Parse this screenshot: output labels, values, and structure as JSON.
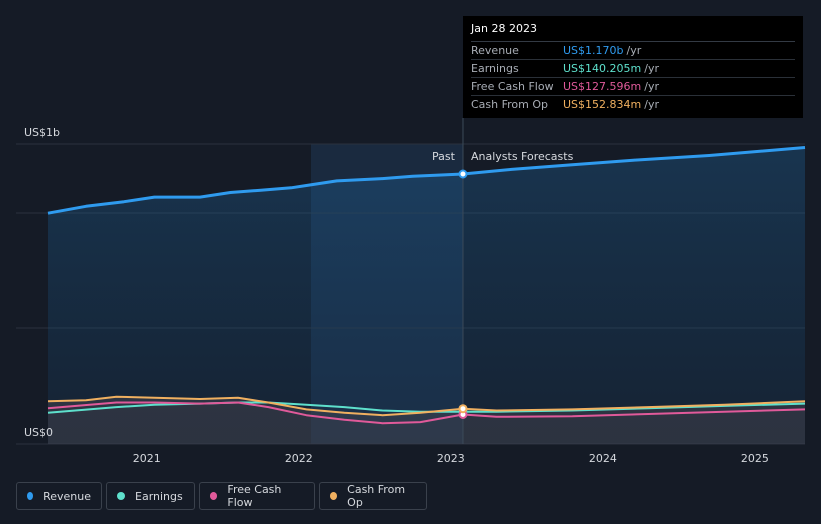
{
  "tooltip": {
    "date": "Jan 28 2023",
    "rows": [
      {
        "label": "Revenue",
        "value": "US$1.170b",
        "unit": "/yr",
        "color": "#2f9bef"
      },
      {
        "label": "Earnings",
        "value": "US$140.205m",
        "unit": "/yr",
        "color": "#5ee0cc"
      },
      {
        "label": "Free Cash Flow",
        "value": "US$127.596m",
        "unit": "/yr",
        "color": "#e05a9a"
      },
      {
        "label": "Cash From Op",
        "value": "US$152.834m",
        "unit": "/yr",
        "color": "#f0b060"
      }
    ]
  },
  "labels": {
    "past": "Past",
    "forecast": "Analysts Forecasts"
  },
  "legend": [
    {
      "label": "Revenue",
      "color": "#2f9bef"
    },
    {
      "label": "Earnings",
      "color": "#5ee0cc"
    },
    {
      "label": "Free Cash Flow",
      "color": "#e05a9a"
    },
    {
      "label": "Cash From Op",
      "color": "#f0b060"
    }
  ],
  "chart_data": {
    "type": "line",
    "title": "",
    "y_unit": "US$ billions",
    "ylim": [
      0,
      1.3
    ],
    "xlim": [
      2020.35,
      2025.33
    ],
    "y_tick_labels": [
      {
        "value": 1.3,
        "label": "US$1b"
      },
      {
        "value": 0,
        "label": "US$0"
      }
    ],
    "x_ticks": [
      {
        "value": 2021,
        "label": "2021"
      },
      {
        "value": 2022,
        "label": "2022"
      },
      {
        "value": 2023,
        "label": "2023"
      },
      {
        "value": 2024,
        "label": "2024"
      },
      {
        "value": 2025,
        "label": "2025"
      }
    ],
    "past_start": 2022.08,
    "current_x": 2023.08,
    "series": [
      {
        "name": "Revenue",
        "color": "#2f9bef",
        "x": [
          2020.35,
          2020.6,
          2020.85,
          2021.05,
          2021.15,
          2021.35,
          2021.55,
          2021.75,
          2021.95,
          2022.05,
          2022.25,
          2022.4,
          2022.55,
          2022.75,
          2022.9,
          2023.08,
          2023.4,
          2023.8,
          2024.2,
          2024.7,
          2025.33
        ],
        "y": [
          1.0,
          1.03,
          1.05,
          1.07,
          1.07,
          1.07,
          1.09,
          1.1,
          1.11,
          1.12,
          1.14,
          1.145,
          1.15,
          1.16,
          1.165,
          1.17,
          1.19,
          1.21,
          1.23,
          1.25,
          1.285
        ]
      },
      {
        "name": "Earnings",
        "color": "#5ee0cc",
        "x": [
          2020.35,
          2020.8,
          2021.05,
          2021.35,
          2021.6,
          2021.8,
          2022.05,
          2022.3,
          2022.55,
          2022.8,
          2023.08,
          2023.3,
          2023.8,
          2024.3,
          2024.8,
          2025.33
        ],
        "y": [
          0.135,
          0.16,
          0.17,
          0.175,
          0.18,
          0.18,
          0.17,
          0.16,
          0.145,
          0.14,
          0.14,
          0.14,
          0.145,
          0.155,
          0.165,
          0.175
        ]
      },
      {
        "name": "Free Cash Flow",
        "color": "#e05a9a",
        "x": [
          2020.35,
          2020.8,
          2021.05,
          2021.35,
          2021.6,
          2021.8,
          2022.05,
          2022.3,
          2022.55,
          2022.8,
          2023.08,
          2023.3,
          2023.8,
          2024.3,
          2024.8,
          2025.33
        ],
        "y": [
          0.155,
          0.18,
          0.18,
          0.175,
          0.18,
          0.16,
          0.125,
          0.105,
          0.09,
          0.095,
          0.128,
          0.118,
          0.12,
          0.13,
          0.14,
          0.15
        ]
      },
      {
        "name": "Cash From Op",
        "color": "#f0b060",
        "x": [
          2020.35,
          2020.6,
          2020.8,
          2021.05,
          2021.35,
          2021.6,
          2021.8,
          2022.05,
          2022.3,
          2022.55,
          2022.8,
          2023.08,
          2023.3,
          2023.8,
          2024.3,
          2024.8,
          2025.33
        ],
        "y": [
          0.185,
          0.19,
          0.205,
          0.2,
          0.195,
          0.2,
          0.18,
          0.15,
          0.135,
          0.125,
          0.135,
          0.153,
          0.145,
          0.15,
          0.16,
          0.17,
          0.185
        ]
      }
    ]
  }
}
